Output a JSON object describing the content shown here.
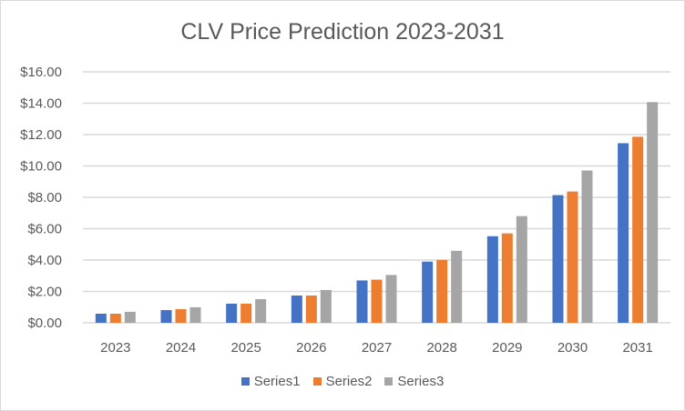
{
  "chart_data": {
    "type": "bar",
    "title": "CLV Price Prediction 2023-2031",
    "categories": [
      "2023",
      "2024",
      "2025",
      "2026",
      "2027",
      "2028",
      "2029",
      "2030",
      "2031"
    ],
    "series": [
      {
        "name": "Series1",
        "color": "#4472c4",
        "values": [
          0.58,
          0.81,
          1.22,
          1.74,
          2.7,
          3.9,
          5.52,
          8.14,
          11.45
        ]
      },
      {
        "name": "Series2",
        "color": "#ed7d31",
        "values": [
          0.58,
          0.87,
          1.22,
          1.74,
          2.75,
          4.01,
          5.7,
          8.37,
          11.86
        ]
      },
      {
        "name": "Series3",
        "color": "#a5a5a5",
        "values": [
          0.7,
          0.99,
          1.51,
          2.09,
          3.05,
          4.59,
          6.8,
          9.71,
          14.07
        ]
      }
    ],
    "ylim": [
      0,
      16
    ],
    "yticks": [
      "$0.00",
      "$2.00",
      "$4.00",
      "$6.00",
      "$8.00",
      "$10.00",
      "$12.00",
      "$14.00",
      "$16.00"
    ],
    "grid": true,
    "legend": "bottom",
    "xlabel": "",
    "ylabel": ""
  }
}
